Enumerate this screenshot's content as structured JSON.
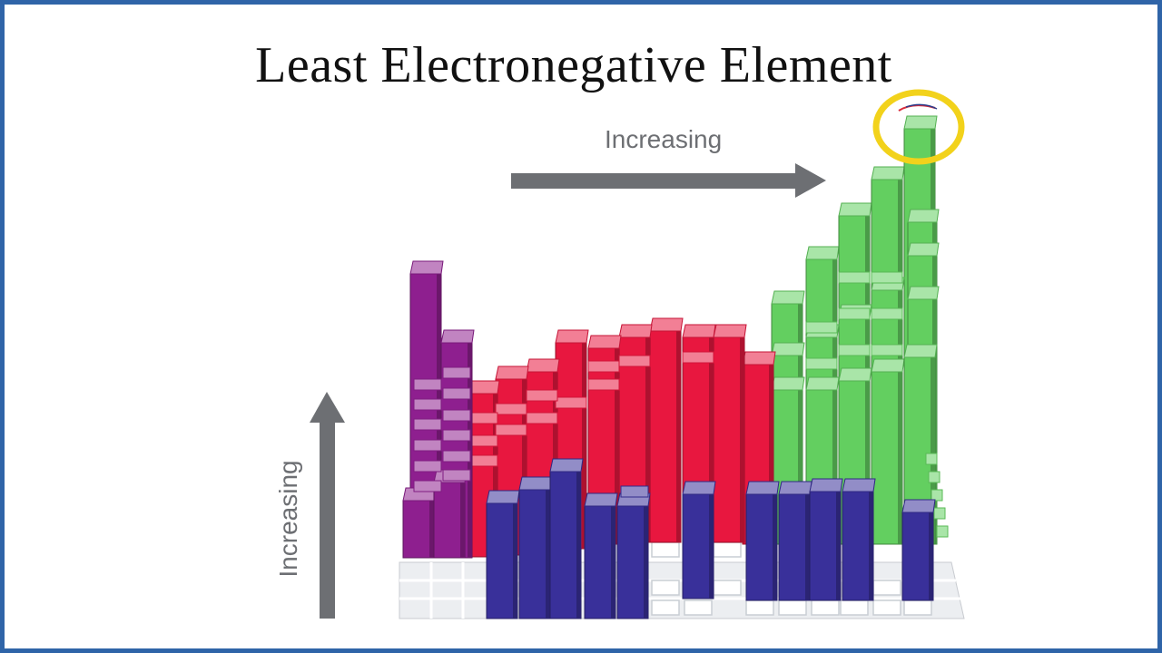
{
  "slide": {
    "title": "Least Electronegative Element"
  },
  "axes": {
    "horizontal_label": "Increasing",
    "vertical_label": "Increasing"
  },
  "highlight": {
    "description_name": "highlight-circle",
    "color": "#f2d21b"
  },
  "colors": {
    "frame": "#2f64a8",
    "arrow": "#6d6f73",
    "s_block": "#8e1f8f",
    "d_block": "#e8173f",
    "p_block": "#63cf60",
    "f_block": "#39309a",
    "grid_floor": "#d6d8dc"
  }
}
